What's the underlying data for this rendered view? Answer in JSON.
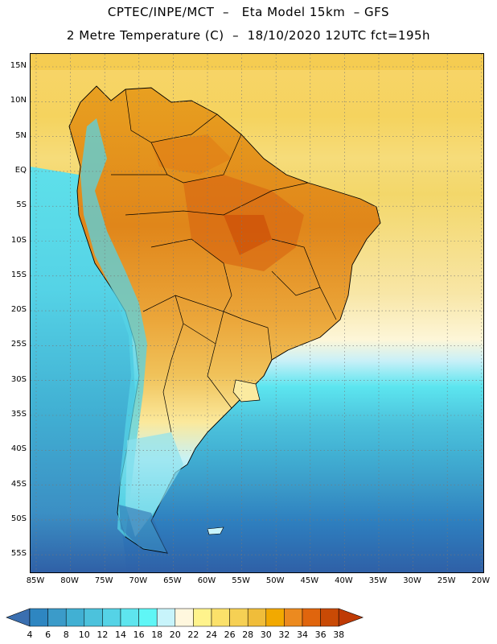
{
  "header": {
    "line1": "CPTEC/INPE/MCT  –   Eta Model 15km  – GFS",
    "line2": "2 Metre Temperature (C)  –  18/10/2020 12UTC fct=195h"
  },
  "latitude_labels": [
    "15N",
    "10N",
    "5N",
    "EQ",
    "5S",
    "10S",
    "15S",
    "20S",
    "25S",
    "30S",
    "35S",
    "40S",
    "45S",
    "50S",
    "55S"
  ],
  "longitude_labels": [
    "85W",
    "80W",
    "75W",
    "70W",
    "65W",
    "60W",
    "55W",
    "50W",
    "45W",
    "40W",
    "35W",
    "30W",
    "25W",
    "20W"
  ],
  "colorbar": {
    "labels": [
      "4",
      "6",
      "8",
      "10",
      "12",
      "14",
      "16",
      "18",
      "20",
      "22",
      "24",
      "26",
      "28",
      "30",
      "32",
      "34",
      "36",
      "38"
    ],
    "colors": [
      "#3a6fb0",
      "#2e86c1",
      "#3b9bc9",
      "#41b0d3",
      "#4cc2dc",
      "#55d3e6",
      "#5ee5ee",
      "#5ff6f6",
      "#c8f4fb",
      "#fff7de",
      "#fff38c",
      "#fbe16a",
      "#f6d054",
      "#f0bd3a",
      "#f2a900",
      "#ec8a1f",
      "#e0650d",
      "#c94a05",
      "#bf3a05"
    ]
  }
}
